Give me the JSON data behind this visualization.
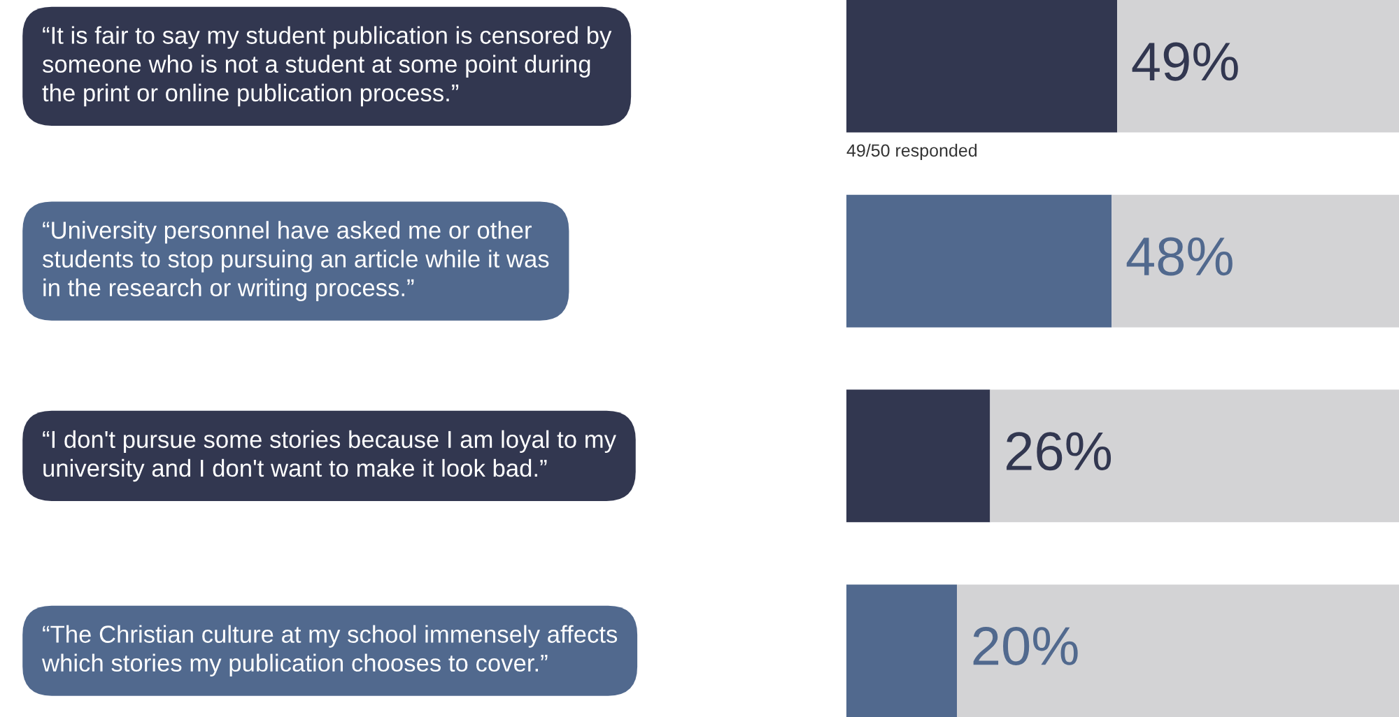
{
  "chart_data": {
    "type": "bar",
    "orientation": "horizontal",
    "stacked": true,
    "categories": [
      "“It is fair to say my student publication is censored by\nsomeone who is not a student at some point during\nthe print or online publication process.”",
      "“University personnel have asked me or other\nstudents to stop pursuing an article while it was\nin the research or writing process.”",
      "“I don't pursue some stories because I am loyal to my\nuniversity and I don't want to make it look bad.”",
      "“The Christian culture at my school immensely affects\nwhich stories my publication chooses to cover.”"
    ],
    "series": [
      {
        "colors": [
          "#323750",
          "#51698e",
          "#323750",
          "#51698e"
        ],
        "values": [
          49,
          48,
          26,
          20
        ],
        "value_labels": [
          "49%",
          "48%",
          "26%",
          "20%"
        ]
      },
      {
        "color": "#d3d3d5",
        "values": [
          51,
          52,
          74,
          80
        ]
      }
    ],
    "xlim": [
      0,
      100
    ],
    "tick_labels": false,
    "annotations": [
      "49/50 responded"
    ]
  }
}
